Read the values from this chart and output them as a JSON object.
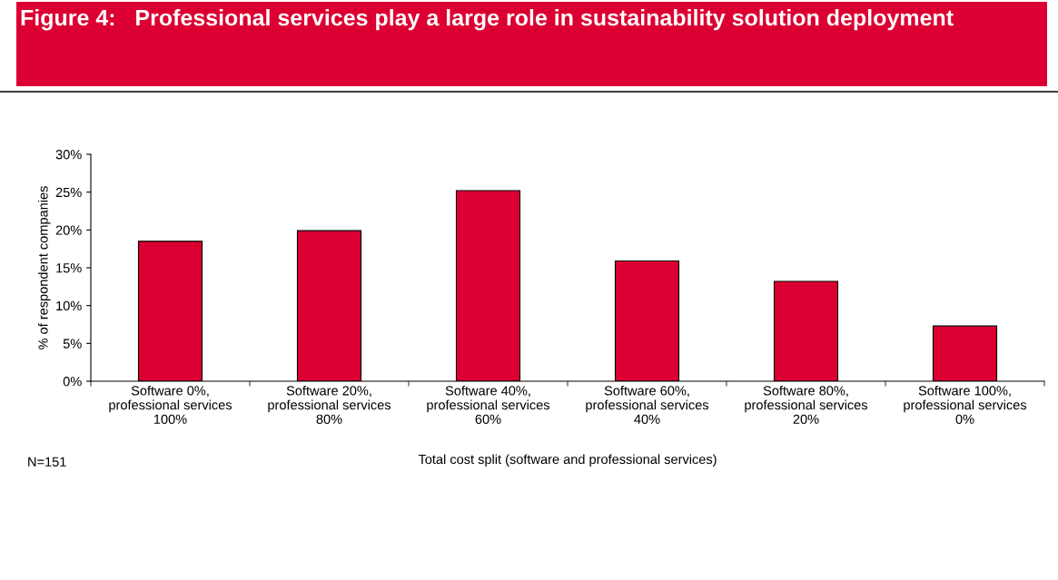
{
  "chart_data": {
    "type": "bar",
    "title": "Figure 4:   Professional services play a large role in sustainability solution deployment",
    "categories": [
      "Software 0%,\nprofessional services\n100%",
      "Software 20%,\nprofessional services\n80%",
      "Software 40%,\nprofessional services\n60%",
      "Software 60%,\nprofessional services\n40%",
      "Software 80%,\nprofessional services\n20%",
      "Software 100%,\nprofessional services\n0%"
    ],
    "values": [
      18.5,
      19.9,
      25.2,
      15.9,
      13.2,
      7.3
    ],
    "color": "#dc0032",
    "xlabel": "Total cost split (software and professional services)",
    "ylabel": "% of respondent companies",
    "ylim": [
      0,
      30
    ],
    "yticks": [
      {
        "value": 0,
        "label": "0%"
      },
      {
        "value": 5,
        "label": "5%"
      },
      {
        "value": 10,
        "label": "10%"
      },
      {
        "value": 15,
        "label": "15%"
      },
      {
        "value": 20,
        "label": "20%"
      },
      {
        "value": 25,
        "label": "25%"
      },
      {
        "value": 30,
        "label": "30%"
      }
    ],
    "grid": false,
    "annotations": [
      "N=151"
    ]
  }
}
